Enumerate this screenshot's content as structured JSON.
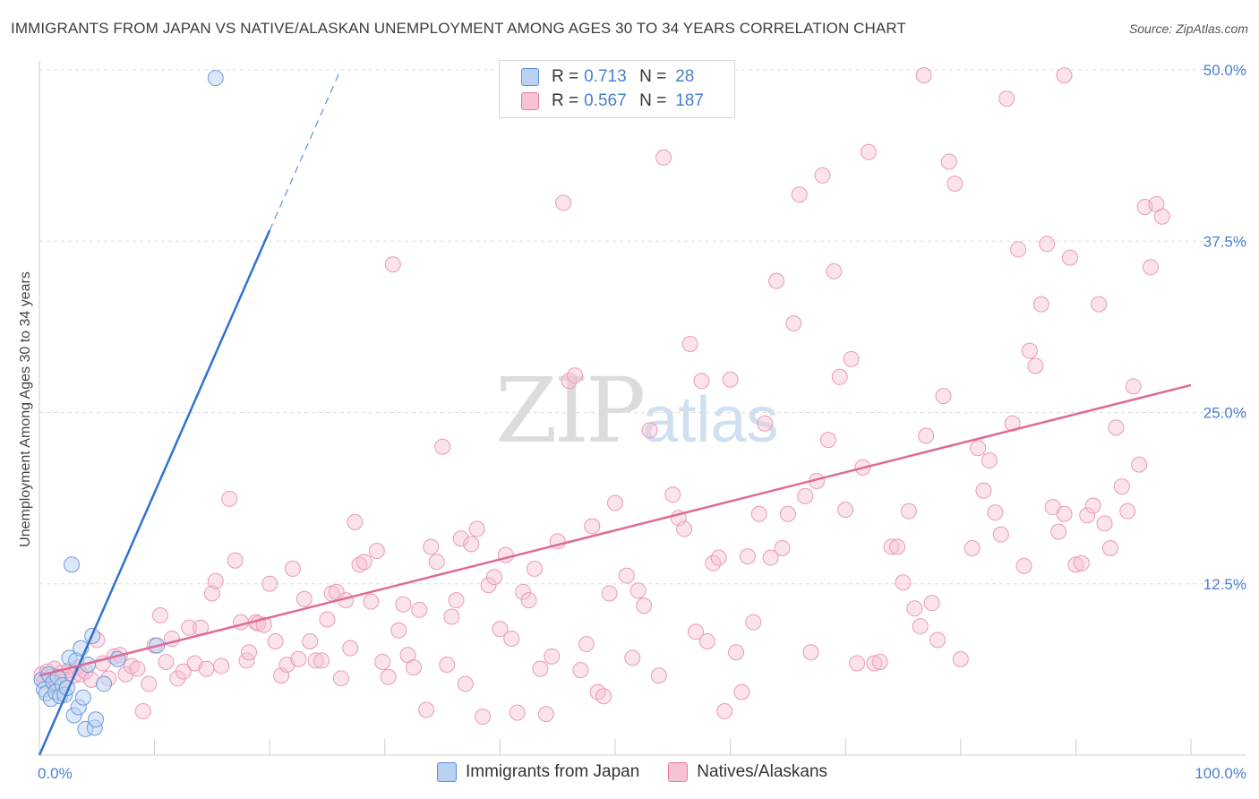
{
  "title": "IMMIGRANTS FROM JAPAN VS NATIVE/ALASKAN UNEMPLOYMENT AMONG AGES 30 TO 34 YEARS CORRELATION CHART",
  "source": "Source: ZipAtlas.com",
  "watermark": {
    "zip": "ZIP",
    "atlas": "atlas"
  },
  "colors": {
    "blue": "#5b8fd8",
    "blue_fill": "#b9d1f2",
    "pink": "#e87aa2",
    "pink_fill": "#f7c2d3",
    "accent_text": "#4a7fd0"
  },
  "legend": {
    "rows": [
      {
        "r_label": "R =",
        "r_value": "0.713",
        "n_label": "N =",
        "n_value": "28"
      },
      {
        "r_label": "R =",
        "r_value": "0.567",
        "n_label": "N =",
        "n_value": "187"
      }
    ]
  },
  "bottom_legend": [
    "Immigrants from Japan",
    "Natives/Alaskans"
  ],
  "chart_data": {
    "type": "scatter",
    "xlabel": "",
    "ylabel": "Unemployment Among Ages 30 to 34 years",
    "xlim": [
      0,
      100
    ],
    "ylim": [
      0,
      50
    ],
    "x_tick_labels": [
      {
        "value": 0,
        "label": "0.0%"
      },
      {
        "value": 100,
        "label": "100.0%"
      }
    ],
    "y_tick_labels": [
      {
        "value": 12.5,
        "label": "12.5%"
      },
      {
        "value": 25,
        "label": "25.0%"
      },
      {
        "value": 37.5,
        "label": "37.5%"
      },
      {
        "value": 50,
        "label": "50.0%"
      }
    ],
    "series": [
      {
        "name": "Immigrants from Japan",
        "color": "#5b8fd8",
        "R": 0.713,
        "N": 28,
        "trend": {
          "x0": 0,
          "y0": 0,
          "x1": 20.0,
          "y1": 38.3,
          "dashed_to": {
            "x": 26.0,
            "y": 49.7
          }
        },
        "points": [
          [
            0.2,
            5.5
          ],
          [
            0.4,
            4.8
          ],
          [
            0.6,
            4.5
          ],
          [
            0.8,
            5.9
          ],
          [
            1.0,
            4.1
          ],
          [
            1.2,
            5.3
          ],
          [
            1.4,
            4.6
          ],
          [
            1.6,
            5.7
          ],
          [
            1.8,
            4.3
          ],
          [
            2.0,
            5.1
          ],
          [
            2.2,
            4.4
          ],
          [
            2.4,
            4.9
          ],
          [
            2.6,
            7.1
          ],
          [
            2.8,
            13.9
          ],
          [
            3.0,
            2.9
          ],
          [
            3.2,
            6.9
          ],
          [
            3.4,
            3.5
          ],
          [
            3.6,
            7.8
          ],
          [
            3.8,
            4.2
          ],
          [
            4.0,
            1.9
          ],
          [
            4.2,
            6.6
          ],
          [
            4.6,
            8.7
          ],
          [
            4.8,
            2.0
          ],
          [
            4.9,
            2.6
          ],
          [
            5.6,
            5.2
          ],
          [
            6.8,
            7.0
          ],
          [
            10.2,
            8.0
          ],
          [
            15.3,
            49.4
          ]
        ]
      },
      {
        "name": "Natives/Alaskans",
        "color": "#e87aa2",
        "R": 0.567,
        "N": 187,
        "trend": {
          "x0": 0,
          "y0": 5.8,
          "x1": 100,
          "y1": 27.0
        },
        "points": [
          [
            0.2,
            5.9
          ],
          [
            0.4,
            5.4
          ],
          [
            0.7,
            6.1
          ],
          [
            1.0,
            5.7
          ],
          [
            1.3,
            6.3
          ],
          [
            1.6,
            5.2
          ],
          [
            1.9,
            6.0
          ],
          [
            2.2,
            5.5
          ],
          [
            2.6,
            6.2
          ],
          [
            3.0,
            5.8
          ],
          [
            3.3,
            6.4
          ],
          [
            3.6,
            5.9
          ],
          [
            4.0,
            6.1
          ],
          [
            4.5,
            5.5
          ],
          [
            5.0,
            8.4
          ],
          [
            5.5,
            6.7
          ],
          [
            6.0,
            5.6
          ],
          [
            6.5,
            7.2
          ],
          [
            7.0,
            7.3
          ],
          [
            7.5,
            5.9
          ],
          [
            8.0,
            6.5
          ],
          [
            8.5,
            6.3
          ],
          [
            9.0,
            3.2
          ],
          [
            9.5,
            5.2
          ],
          [
            10.0,
            8.0
          ],
          [
            10.5,
            10.2
          ],
          [
            11.0,
            6.8
          ],
          [
            11.5,
            8.5
          ],
          [
            12.0,
            5.6
          ],
          [
            12.5,
            6.1
          ],
          [
            13.0,
            9.3
          ],
          [
            13.5,
            6.7
          ],
          [
            14.0,
            9.3
          ],
          [
            14.5,
            6.3
          ],
          [
            15.0,
            11.8
          ],
          [
            15.3,
            12.7
          ],
          [
            15.8,
            6.5
          ],
          [
            16.5,
            18.7
          ],
          [
            17.0,
            14.2
          ],
          [
            17.5,
            9.7
          ],
          [
            18.0,
            6.9
          ],
          [
            18.2,
            7.5
          ],
          [
            18.8,
            9.7
          ],
          [
            19.0,
            9.6
          ],
          [
            19.5,
            9.5
          ],
          [
            20.0,
            12.5
          ],
          [
            20.5,
            8.3
          ],
          [
            21.0,
            5.8
          ],
          [
            21.5,
            6.6
          ],
          [
            22.0,
            13.6
          ],
          [
            22.5,
            7.0
          ],
          [
            23.0,
            11.4
          ],
          [
            23.5,
            8.3
          ],
          [
            24.0,
            6.9
          ],
          [
            24.5,
            6.9
          ],
          [
            25.0,
            9.9
          ],
          [
            25.4,
            11.8
          ],
          [
            25.8,
            11.9
          ],
          [
            26.2,
            5.6
          ],
          [
            26.6,
            11.3
          ],
          [
            27.0,
            7.8
          ],
          [
            27.4,
            17.0
          ],
          [
            27.8,
            13.9
          ],
          [
            28.2,
            14.1
          ],
          [
            28.8,
            11.2
          ],
          [
            29.3,
            14.9
          ],
          [
            29.8,
            6.8
          ],
          [
            30.3,
            5.7
          ],
          [
            30.7,
            35.8
          ],
          [
            31.2,
            9.1
          ],
          [
            31.6,
            11.0
          ],
          [
            32.0,
            7.3
          ],
          [
            32.5,
            6.4
          ],
          [
            33.0,
            10.6
          ],
          [
            33.6,
            3.3
          ],
          [
            34.0,
            15.2
          ],
          [
            34.5,
            14.1
          ],
          [
            35.0,
            22.5
          ],
          [
            35.4,
            6.6
          ],
          [
            35.8,
            10.1
          ],
          [
            36.2,
            11.3
          ],
          [
            36.6,
            15.8
          ],
          [
            37.0,
            5.2
          ],
          [
            37.5,
            15.4
          ],
          [
            38.0,
            16.5
          ],
          [
            38.5,
            2.8
          ],
          [
            39.0,
            12.4
          ],
          [
            39.5,
            13.0
          ],
          [
            40.0,
            9.2
          ],
          [
            40.5,
            14.6
          ],
          [
            41.0,
            8.5
          ],
          [
            41.5,
            3.1
          ],
          [
            42.0,
            11.9
          ],
          [
            42.5,
            11.3
          ],
          [
            43.0,
            13.6
          ],
          [
            43.5,
            6.3
          ],
          [
            44.0,
            3.0
          ],
          [
            44.5,
            7.2
          ],
          [
            45.0,
            15.6
          ],
          [
            45.5,
            40.3
          ],
          [
            46.0,
            27.3
          ],
          [
            46.5,
            27.7
          ],
          [
            47.0,
            6.2
          ],
          [
            47.5,
            8.1
          ],
          [
            48.0,
            16.7
          ],
          [
            48.5,
            4.6
          ],
          [
            49.0,
            4.3
          ],
          [
            49.5,
            11.8
          ],
          [
            50.0,
            18.4
          ],
          [
            51.0,
            13.1
          ],
          [
            51.5,
            7.1
          ],
          [
            52.0,
            12.0
          ],
          [
            52.5,
            10.9
          ],
          [
            53.0,
            23.7
          ],
          [
            53.8,
            5.8
          ],
          [
            54.2,
            43.6
          ],
          [
            55.0,
            19.0
          ],
          [
            55.5,
            17.3
          ],
          [
            56.0,
            16.5
          ],
          [
            56.5,
            30.0
          ],
          [
            57.0,
            9.0
          ],
          [
            57.5,
            27.3
          ],
          [
            58.0,
            8.3
          ],
          [
            58.5,
            14.0
          ],
          [
            59.0,
            14.4
          ],
          [
            59.5,
            3.2
          ],
          [
            60.0,
            27.4
          ],
          [
            60.5,
            7.5
          ],
          [
            61.0,
            4.6
          ],
          [
            61.5,
            14.5
          ],
          [
            62.0,
            9.7
          ],
          [
            62.5,
            17.6
          ],
          [
            63.0,
            24.2
          ],
          [
            64.0,
            34.6
          ],
          [
            64.5,
            15.1
          ],
          [
            65.0,
            17.6
          ],
          [
            65.5,
            31.5
          ],
          [
            66.0,
            40.9
          ],
          [
            66.5,
            18.9
          ],
          [
            67.0,
            7.5
          ],
          [
            67.5,
            20.0
          ],
          [
            68.0,
            42.3
          ],
          [
            68.5,
            23.0
          ],
          [
            69.0,
            35.3
          ],
          [
            69.5,
            27.6
          ],
          [
            70.0,
            17.9
          ],
          [
            70.5,
            28.9
          ],
          [
            71.0,
            6.7
          ],
          [
            71.5,
            21.0
          ],
          [
            72.0,
            44.0
          ],
          [
            72.5,
            6.7
          ],
          [
            73.0,
            6.8
          ],
          [
            74.0,
            15.2
          ],
          [
            74.5,
            15.2
          ],
          [
            75.0,
            12.6
          ],
          [
            75.5,
            17.8
          ],
          [
            76.0,
            10.7
          ],
          [
            76.5,
            9.4
          ],
          [
            77.0,
            23.3
          ],
          [
            77.5,
            11.1
          ],
          [
            78.0,
            8.4
          ],
          [
            78.5,
            26.2
          ],
          [
            79.0,
            43.3
          ],
          [
            79.5,
            41.7
          ],
          [
            80.0,
            7.0
          ],
          [
            81.0,
            15.1
          ],
          [
            81.5,
            22.4
          ],
          [
            82.0,
            19.3
          ],
          [
            82.5,
            21.5
          ],
          [
            83.0,
            17.7
          ],
          [
            83.5,
            16.1
          ],
          [
            84.0,
            47.9
          ],
          [
            84.5,
            24.2
          ],
          [
            85.0,
            36.9
          ],
          [
            85.5,
            13.8
          ],
          [
            86.0,
            29.5
          ],
          [
            86.5,
            28.4
          ],
          [
            87.0,
            32.9
          ],
          [
            87.5,
            37.3
          ],
          [
            88.0,
            18.1
          ],
          [
            88.5,
            16.3
          ],
          [
            89.0,
            17.6
          ],
          [
            89.5,
            36.3
          ],
          [
            90.0,
            13.9
          ],
          [
            90.5,
            14.0
          ],
          [
            91.0,
            17.5
          ],
          [
            91.5,
            18.2
          ],
          [
            92.0,
            32.9
          ],
          [
            92.5,
            16.9
          ],
          [
            93.0,
            15.1
          ],
          [
            93.5,
            23.9
          ],
          [
            94.0,
            19.6
          ],
          [
            94.5,
            17.8
          ],
          [
            95.0,
            26.9
          ],
          [
            95.5,
            21.2
          ],
          [
            96.0,
            40.0
          ],
          [
            96.5,
            35.6
          ],
          [
            97.0,
            40.2
          ],
          [
            97.5,
            39.3
          ],
          [
            63.5,
            14.4
          ],
          [
            89.0,
            49.6
          ],
          [
            76.8,
            49.6
          ]
        ]
      }
    ]
  }
}
